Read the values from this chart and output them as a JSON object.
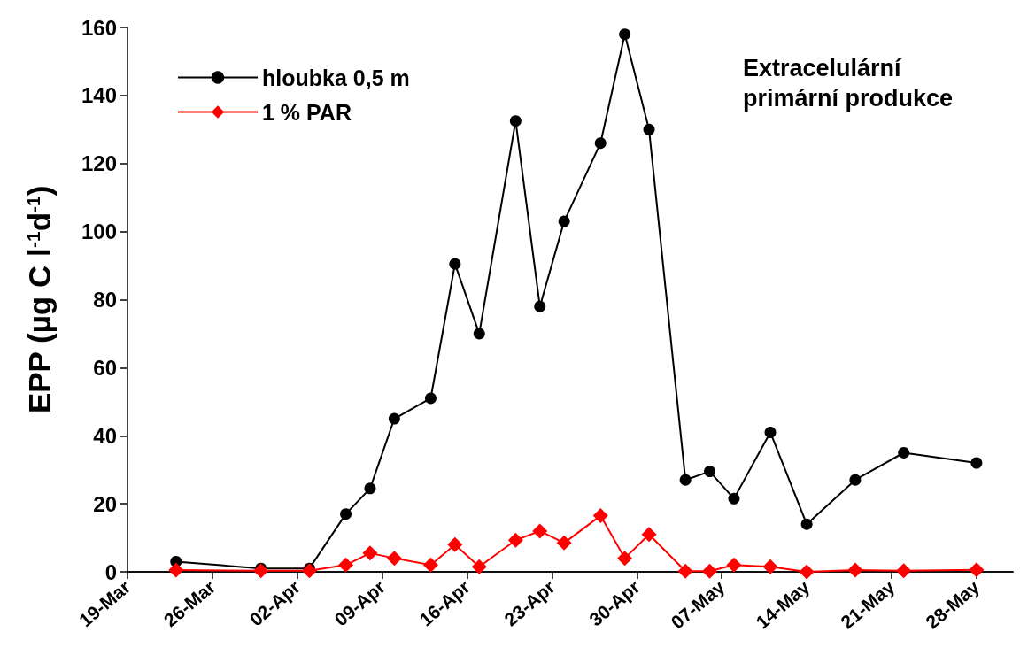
{
  "chart_data": {
    "type": "line",
    "title": "Extracelulární primární produkce",
    "ylabel": "EPP (µg C l$^{-1}$d$^{-1}$)",
    "xlim": [
      "--03-19",
      "--05-31"
    ],
    "xticks": [
      {
        "value": "--03-19",
        "label": "19-Mar"
      },
      {
        "value": "--03-26",
        "label": "26-Mar"
      },
      {
        "value": "--04-02",
        "label": "02-Apr"
      },
      {
        "value": "--04-09",
        "label": "09-Apr"
      },
      {
        "value": "--04-16",
        "label": "16-Apr"
      },
      {
        "value": "--04-23",
        "label": "23-Apr"
      },
      {
        "value": "--04-30",
        "label": "30-Apr"
      },
      {
        "value": "--05-07",
        "label": "07-May"
      },
      {
        "value": "--05-14",
        "label": "14-May"
      },
      {
        "value": "--05-21",
        "label": "21-May"
      },
      {
        "value": "--05-28",
        "label": "28-May"
      }
    ],
    "ylim": [
      0,
      160
    ],
    "yticks": [
      0,
      20,
      40,
      60,
      80,
      100,
      120,
      140,
      160
    ],
    "x": [
      "--03-23",
      "--03-30",
      "--04-03",
      "--04-06",
      "--04-08",
      "--04-10",
      "--04-13",
      "--04-15",
      "--04-17",
      "--04-20",
      "--04-22",
      "--04-24",
      "--04-27",
      "--04-29",
      "--05-01",
      "--05-04",
      "--05-06",
      "--05-08",
      "--05-11",
      "--05-14",
      "--05-18",
      "--05-22",
      "--05-28"
    ],
    "series": [
      {
        "name": "hloubka 0,5 m",
        "color": "#000000",
        "marker": "circle",
        "values": [
          3,
          1,
          1,
          17,
          24.5,
          45,
          51,
          90.5,
          70,
          132.5,
          78,
          103,
          126,
          158,
          130,
          27,
          29.5,
          21.5,
          41,
          14,
          27,
          35,
          32
        ]
      },
      {
        "name": "1 % PAR",
        "color": "#ff0000",
        "marker": "diamond",
        "values": [
          0.5,
          0.3,
          0.3,
          2,
          5.5,
          4,
          2,
          8,
          1.5,
          9.3,
          12,
          8.5,
          16.5,
          4,
          11,
          0.2,
          0.2,
          2,
          1.5,
          0,
          0.5,
          0.3,
          0.6
        ]
      }
    ],
    "legend": "top left",
    "grid": false
  }
}
